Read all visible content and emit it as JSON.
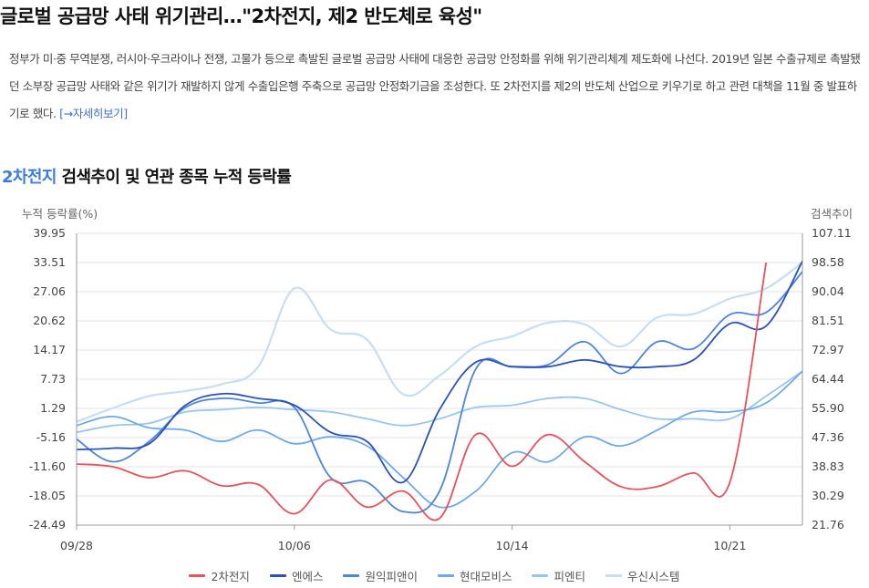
{
  "article": {
    "headline": "글로벌 공급망 사태 위기관리…\"2차전지, 제2 반도체로 육성\"",
    "summary": "정부가 미·중 무역분쟁, 러시아·우크라이나 전쟁, 고물가 등으로 촉발된 글로벌 공급망 사태에 대응한 공급망 안정화를 위해 위기관리체계 제도화에 나선다. 2019년 일본 수출규제로 촉발됐던 소부장 공급망 사태와 같은 위기가 재발하지 않게 수출입은행 주축으로 공급망 안정화기금을 조성한다. 또 2차전지를 제2의 반도체 산업으로 키우기로 하고 관련 대책을 11월 중 발표하기로 했다.",
    "more_link": "[→자세히보기]"
  },
  "section": {
    "keyword": "2차전지",
    "title_rest": " 검색추이 및 연관 종목 누적 등락률"
  },
  "chart_data": {
    "type": "line",
    "left_axis_label": "누적 등락률(%)",
    "right_axis_label": "검색추이",
    "left_ticks": [
      "39.95",
      "33.51",
      "27.06",
      "20.62",
      "14.17",
      "7.73",
      "1.29",
      "-5.16",
      "-11.60",
      "-18.05",
      "-24.49"
    ],
    "right_ticks": [
      "107.11",
      "98.58",
      "90.04",
      "81.51",
      "72.97",
      "64.44",
      "55.90",
      "47.36",
      "38.83",
      "30.29",
      "21.76"
    ],
    "ylim_left": [
      -24.49,
      39.95
    ],
    "ylim_right": [
      21.76,
      107.11
    ],
    "x_ticks": [
      {
        "index": 0,
        "label": "09/28"
      },
      {
        "index": 6,
        "label": "10/06"
      },
      {
        "index": 12,
        "label": "10/14"
      },
      {
        "index": 18,
        "label": "10/21"
      }
    ],
    "grid": "horizontal",
    "legend_position": "bottom",
    "series": [
      {
        "name": "2차전지",
        "axis": "left",
        "color": "#e8525a",
        "values": [
          -11.0,
          -11.6,
          -14.0,
          -12.5,
          -15.8,
          -15.5,
          -22.0,
          -14.5,
          -20.5,
          -17.0,
          -23.0,
          -4.5,
          -11.5,
          -4.5,
          -10.5,
          -16.0,
          -16.0,
          -13.0,
          -15.0,
          33.5,
          null
        ]
      },
      {
        "name": "엔에스",
        "axis": "left",
        "color": "#2a52b8",
        "values": [
          -7.8,
          -7.5,
          -6.5,
          2.0,
          4.5,
          3.5,
          2.0,
          -4.0,
          -6.0,
          -15.0,
          1.0,
          11.5,
          10.5,
          10.5,
          12.0,
          10.5,
          10.5,
          12.0,
          20.0,
          19.5,
          33.8
        ]
      },
      {
        "name": "원익피앤이",
        "axis": "left",
        "color": "#4f84dd",
        "values": [
          -5.5,
          -10.5,
          -6.0,
          1.5,
          3.5,
          2.5,
          1.5,
          -14.0,
          -15.0,
          -21.5,
          -17.0,
          10.0,
          10.5,
          11.0,
          16.0,
          9.0,
          16.0,
          14.5,
          22.0,
          22.5,
          31.5
        ]
      },
      {
        "name": "현대모비스",
        "axis": "left",
        "color": "#6fa9e8",
        "values": [
          -2.5,
          -0.5,
          -3.0,
          -3.5,
          -6.0,
          -3.5,
          -6.5,
          -5.0,
          -7.0,
          -14.0,
          -20.5,
          -17.0,
          -8.5,
          -10.5,
          -5.0,
          -7.0,
          -3.5,
          0.5,
          0.5,
          2.5,
          9.5
        ]
      },
      {
        "name": "피엔티",
        "axis": "left",
        "color": "#98c6f0",
        "values": [
          -4.0,
          -2.5,
          -2.0,
          0.5,
          1.0,
          1.5,
          1.0,
          0.5,
          -1.0,
          -2.5,
          -1.0,
          1.5,
          2.0,
          3.5,
          3.5,
          1.0,
          -1.0,
          -1.0,
          -1.0,
          4.0,
          9.5
        ]
      }
    ],
    "search_series": {
      "name": "우신시스템",
      "axis": "right",
      "color": "#c6def5",
      "values": [
        52.0,
        56.0,
        59.5,
        61.0,
        63.0,
        68.0,
        91.0,
        79.0,
        76.0,
        60.0,
        65.5,
        74.0,
        77.0,
        81.0,
        80.5,
        74.0,
        82.5,
        83.5,
        88.0,
        91.0,
        98.6
      ]
    }
  }
}
